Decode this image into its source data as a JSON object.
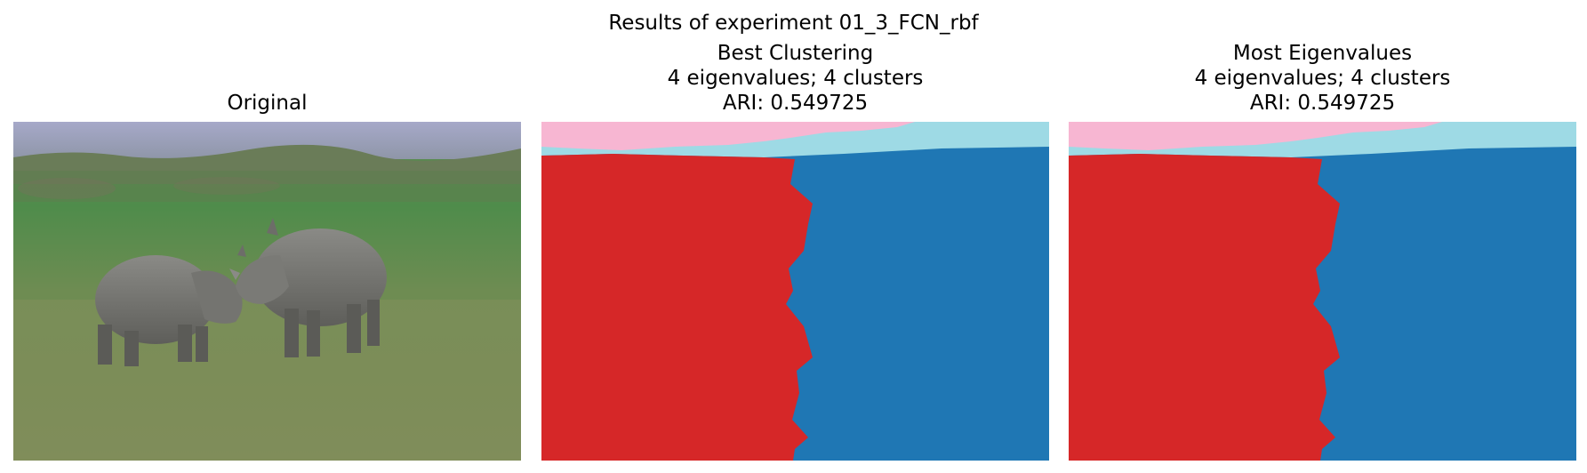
{
  "figure": {
    "suptitle": "Results of experiment 01_3_FCN_rbf"
  },
  "panels": [
    {
      "title_lines": [
        "Original"
      ],
      "image": "photo of two rhinoceroses facing each other on a grass field"
    },
    {
      "title_lines": [
        "Best Clustering",
        "4 eigenvalues; 4 clusters",
        "ARI: 0.549725"
      ],
      "image": "segmentation-map"
    },
    {
      "title_lines": [
        "Most Eigenvalues",
        "4 eigenvalues; 4 clusters",
        "ARI: 0.549725"
      ],
      "image": "segmentation-map"
    }
  ],
  "colors": {
    "cluster_red": "#d62728",
    "cluster_blue": "#1f77b4",
    "cluster_pink": "#f7b6d2",
    "cluster_cyan": "#9edae5"
  }
}
